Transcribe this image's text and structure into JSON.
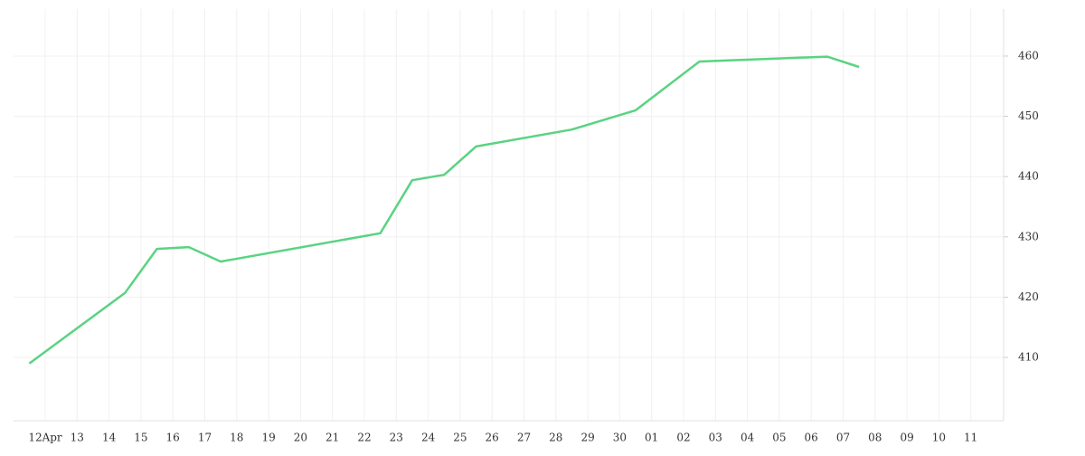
{
  "chart_data": {
    "type": "line",
    "categories": [
      "12Apr",
      "13",
      "14",
      "15",
      "16",
      "17",
      "18",
      "19",
      "20",
      "21",
      "22",
      "23",
      "24",
      "25",
      "26",
      "27",
      "28",
      "29",
      "30",
      "01",
      "02",
      "03",
      "04",
      "05",
      "06",
      "07",
      "08",
      "09",
      "10",
      "11"
    ],
    "x": [
      "12Apr",
      "15",
      "16",
      "17",
      "18",
      "23",
      "24",
      "25",
      "26",
      "29",
      "01",
      "03",
      "07",
      "08"
    ],
    "series": [
      {
        "color": "#5ad382",
        "values": [
          409.0,
          420.7,
          428.0,
          428.3,
          425.9,
          430.6,
          439.4,
          440.3,
          445.0,
          447.8,
          451.0,
          459.1,
          459.9,
          458.2
        ]
      }
    ],
    "ylim": [
      399.5,
      467.8
    ],
    "yticks": [
      410,
      420,
      430,
      440,
      450,
      460
    ],
    "grid": true
  }
}
